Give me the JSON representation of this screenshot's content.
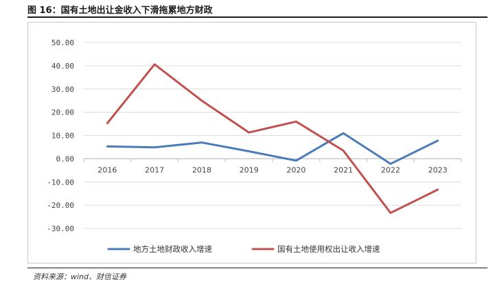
{
  "figure": {
    "title": "图 16：国有土地出让金收入下滑拖累地方财政",
    "source": "资料来源：wind、财信证券"
  },
  "colors": {
    "series_blue": "#4a7ab8",
    "series_red": "#c0504d",
    "grid": "#dcdcdc",
    "axis": "#bfbfbf"
  },
  "chart_data": {
    "type": "line",
    "title": "",
    "xlabel": "",
    "ylabel": "",
    "categories": [
      "2016",
      "2017",
      "2018",
      "2019",
      "2020",
      "2021",
      "2022",
      "2023"
    ],
    "y_ticks": [
      "50.00",
      "40.00",
      "30.00",
      "20.00",
      "10.00",
      "0.00",
      "-10.00",
      "-20.00",
      "-30.00"
    ],
    "ylim": [
      -30,
      50
    ],
    "grid": true,
    "legend_position": "bottom",
    "series": [
      {
        "name": "地方土地财政收入增速",
        "color": "#4a7ab8",
        "values": [
          5.3,
          4.9,
          7.0,
          3.2,
          -0.8,
          11.0,
          -2.2,
          7.8
        ]
      },
      {
        "name": "国有土地使用权出让收入增速",
        "color": "#c0504d",
        "values": [
          15.3,
          40.6,
          25.0,
          11.3,
          16.0,
          3.5,
          -23.3,
          -13.3
        ]
      }
    ]
  }
}
